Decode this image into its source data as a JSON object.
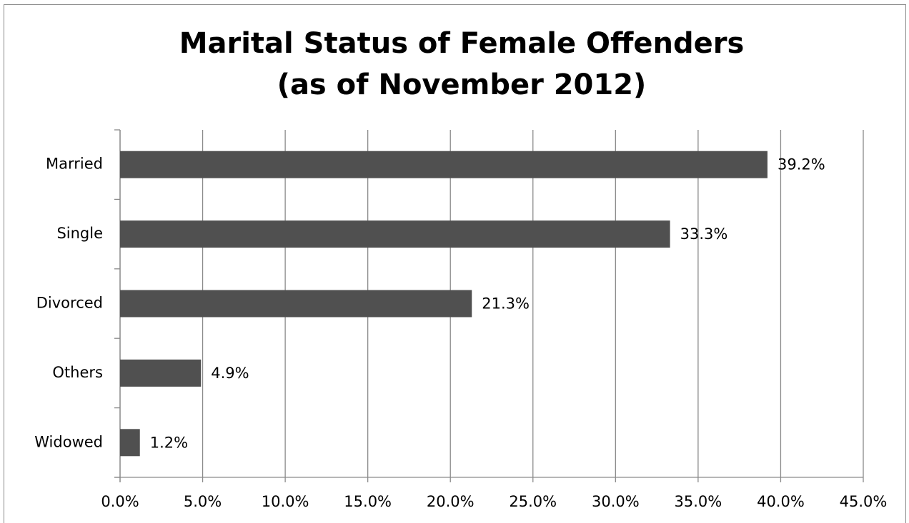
{
  "chart_data": {
    "type": "bar",
    "orientation": "horizontal",
    "title": [
      "Marital Status of Female Offenders",
      "(as of November 2012)"
    ],
    "categories": [
      "Married",
      "Single",
      "Divorced",
      "Others",
      "Widowed"
    ],
    "values": [
      39.2,
      33.3,
      21.3,
      4.9,
      1.2
    ],
    "value_labels": [
      "39.2%",
      "33.3%",
      "21.3%",
      "4.9%",
      "1.2%"
    ],
    "color": "#505050",
    "xlim": [
      0,
      45
    ],
    "xticks": [
      {
        "value": 0,
        "label": "0.0%"
      },
      {
        "value": 5,
        "label": "5.0%"
      },
      {
        "value": 10,
        "label": "10.0%"
      },
      {
        "value": 15,
        "label": "15.0%"
      },
      {
        "value": 20,
        "label": "20.0%"
      },
      {
        "value": 25,
        "label": "25.0%"
      },
      {
        "value": 30,
        "label": "30.0%"
      },
      {
        "value": 35,
        "label": "35.0%"
      },
      {
        "value": 40,
        "label": "40.0%"
      },
      {
        "value": 45,
        "label": "45.0%"
      }
    ],
    "grid": true
  }
}
